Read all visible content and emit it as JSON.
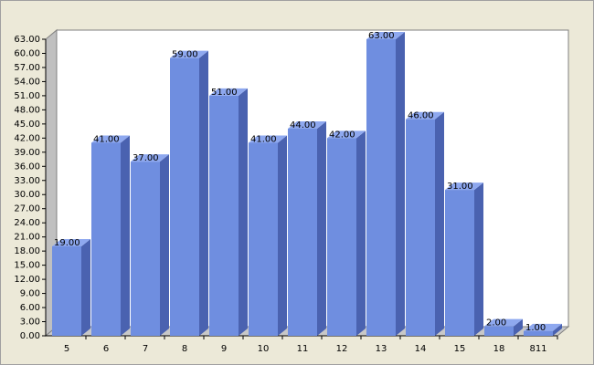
{
  "chart_data": {
    "type": "bar3d",
    "categories": [
      "5",
      "6",
      "7",
      "8",
      "9",
      "10",
      "11",
      "12",
      "13",
      "14",
      "15",
      "18",
      "811"
    ],
    "values": [
      19,
      41,
      37,
      59,
      51,
      41,
      44,
      42,
      63,
      46,
      31,
      2,
      1
    ],
    "value_labels": [
      "19.00",
      "41.00",
      "37.00",
      "59.00",
      "51.00",
      "41.00",
      "44.00",
      "42.00",
      "63.00",
      "46.00",
      "31.00",
      "2.00",
      "1.00"
    ],
    "color": "#6f8ee0",
    "ylim": [
      0,
      63
    ],
    "yticks": [
      {
        "value": 0,
        "label": "0.00"
      },
      {
        "value": 3,
        "label": "3.00"
      },
      {
        "value": 6,
        "label": "6.00"
      },
      {
        "value": 9,
        "label": "9.00"
      },
      {
        "value": 12,
        "label": "12.00"
      },
      {
        "value": 15,
        "label": "15.00"
      },
      {
        "value": 18,
        "label": "18.00"
      },
      {
        "value": 21,
        "label": "21.00"
      },
      {
        "value": 24,
        "label": "24.00"
      },
      {
        "value": 27,
        "label": "27.00"
      },
      {
        "value": 30,
        "label": "30.00"
      },
      {
        "value": 33,
        "label": "33.00"
      },
      {
        "value": 36,
        "label": "36.00"
      },
      {
        "value": 39,
        "label": "39.00"
      },
      {
        "value": 42,
        "label": "42.00"
      },
      {
        "value": 45,
        "label": "45.00"
      },
      {
        "value": 48,
        "label": "48.00"
      },
      {
        "value": 51,
        "label": "51.00"
      },
      {
        "value": 54,
        "label": "54.00"
      },
      {
        "value": 57,
        "label": "57.00"
      },
      {
        "value": 60,
        "label": "60.00"
      },
      {
        "value": 63,
        "label": "63.00"
      }
    ]
  }
}
